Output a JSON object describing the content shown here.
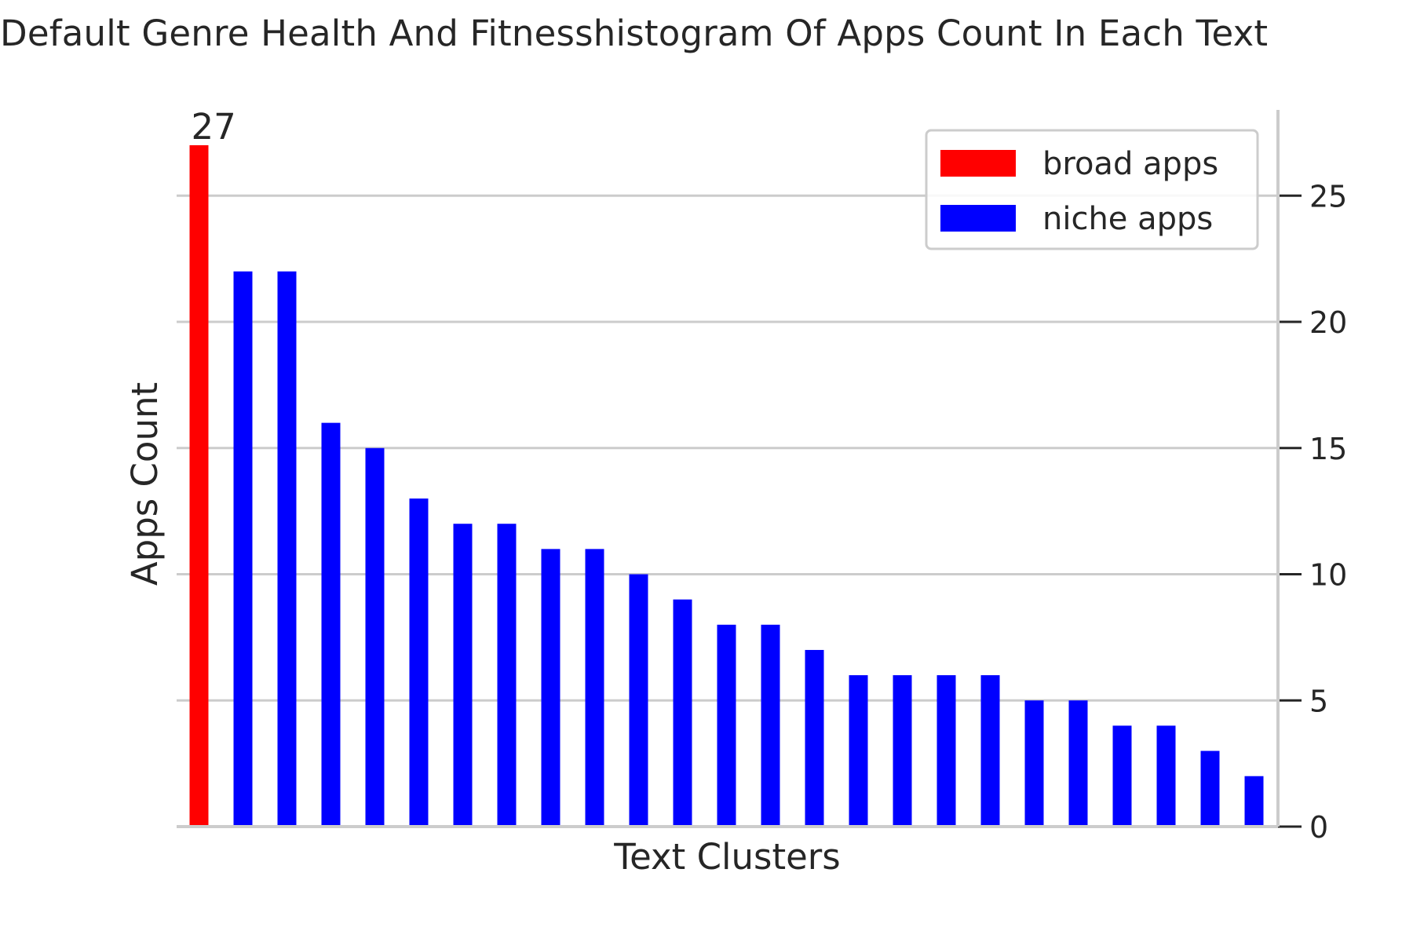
{
  "chart_data": {
    "type": "bar",
    "title": "Default Genre Health And Fitnesshistogram Of Apps Count In Each Text",
    "xlabel": "Text Clusters",
    "ylabel": "Apps Count",
    "ylim": [
      0,
      28.4
    ],
    "yticks": [
      0,
      5,
      10,
      15,
      20,
      25
    ],
    "grid": "horizontal",
    "legend_position": "top-right",
    "values": [
      27,
      22,
      22,
      16,
      15,
      13,
      12,
      12,
      11,
      11,
      10,
      9,
      8,
      8,
      7,
      6,
      6,
      6,
      6,
      5,
      5,
      4,
      4,
      3,
      2
    ],
    "series": [
      {
        "name": "broad apps",
        "color": "#ff0000",
        "indices": [
          0
        ]
      },
      {
        "name": "niche apps",
        "color": "#0000ff",
        "indices": [
          1,
          2,
          3,
          4,
          5,
          6,
          7,
          8,
          9,
          10,
          11,
          12,
          13,
          14,
          15,
          16,
          17,
          18,
          19,
          20,
          21,
          22,
          23,
          24
        ]
      }
    ],
    "annotations": [
      {
        "bar_index": 0,
        "text": "27"
      }
    ]
  }
}
